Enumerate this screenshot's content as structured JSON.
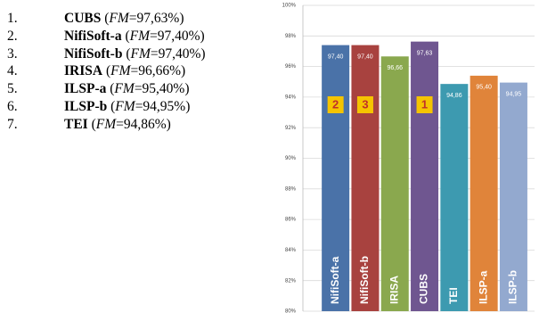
{
  "ranking": [
    {
      "rank": "1.",
      "name": "CUBS",
      "open": " (",
      "metric": "FM",
      "score": "=97,63%)"
    },
    {
      "rank": "2.",
      "name": "NifiSoft-a",
      "open": " (",
      "metric": "FM",
      "score": "=97,40%)"
    },
    {
      "rank": "3.",
      "name": "NifiSoft-b",
      "open": " (",
      "metric": "FM",
      "score": "=97,40%)"
    },
    {
      "rank": "4.",
      "name": "IRISA",
      "open": " (",
      "metric": "FM",
      "score": "=96,66%)"
    },
    {
      "rank": "5.",
      "name": "ILSP-a",
      "open": " (",
      "metric": "FM",
      "score": "=95,40%)"
    },
    {
      "rank": "6.",
      "name": "ILSP-b",
      "open": " (",
      "metric": "FM",
      "score": "=94,95%)"
    },
    {
      "rank": "7.",
      "name": "TEI",
      "open": " (",
      "metric": "FM",
      "score": "=94,86%)"
    }
  ],
  "chart_data": {
    "type": "bar",
    "categories": [
      "NifiSoft-a",
      "NifiSoft-b",
      "IRISA",
      "CUBS",
      "TEI",
      "ILSP-a",
      "ILSP-b"
    ],
    "values": [
      97.4,
      97.4,
      96.66,
      97.63,
      94.86,
      95.4,
      94.95
    ],
    "value_labels": [
      "97,40",
      "97,40",
      "96,66",
      "97,63",
      "94,86",
      "95,40",
      "94,95"
    ],
    "colors": [
      "#4a72a8",
      "#a8423f",
      "#8aa84e",
      "#6f5690",
      "#3d9ab0",
      "#e0843a",
      "#93a9cf"
    ],
    "badges": [
      "2",
      "3",
      null,
      "1",
      null,
      null,
      null
    ],
    "ylim": [
      80,
      100
    ],
    "yticks": [
      {
        "value": 80,
        "label": "80%"
      },
      {
        "value": 82,
        "label": "82%"
      },
      {
        "value": 84,
        "label": "84%"
      },
      {
        "value": 86,
        "label": "86%"
      },
      {
        "value": 88,
        "label": "88%"
      },
      {
        "value": 90,
        "label": "90%"
      },
      {
        "value": 92,
        "label": "92%"
      },
      {
        "value": 94,
        "label": "94%"
      },
      {
        "value": 96,
        "label": "96%"
      },
      {
        "value": 98,
        "label": "98%"
      },
      {
        "value": 100,
        "label": "100%"
      }
    ],
    "grid": true
  }
}
